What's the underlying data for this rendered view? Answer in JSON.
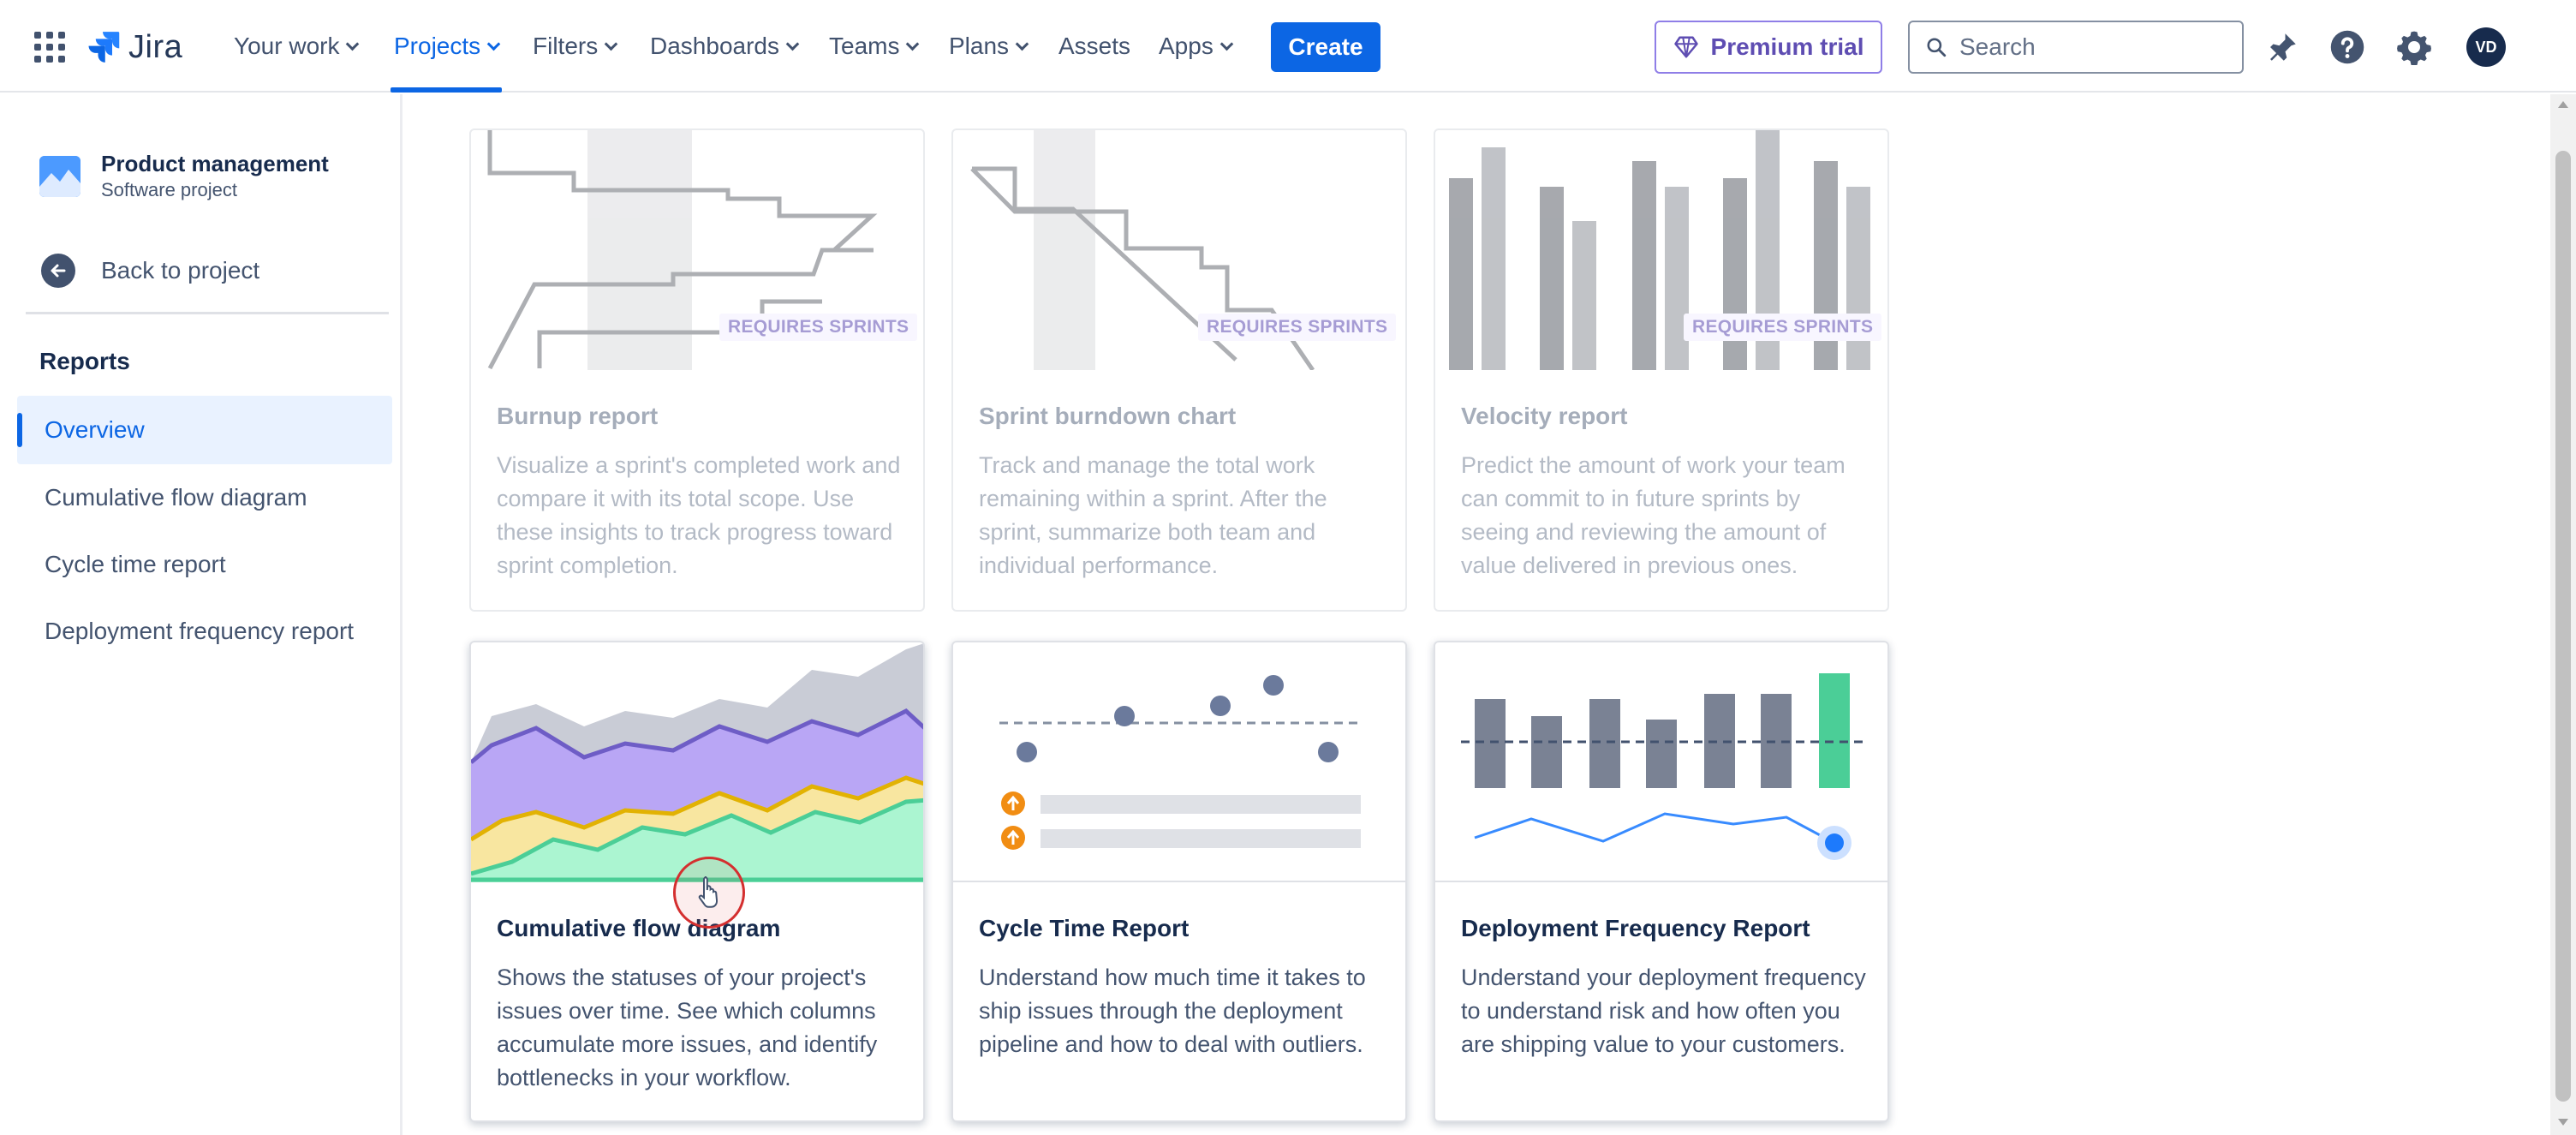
{
  "app": {
    "name": "Jira"
  },
  "nav": {
    "your_work": "Your work",
    "projects": "Projects",
    "filters": "Filters",
    "dashboards": "Dashboards",
    "teams": "Teams",
    "plans": "Plans",
    "assets": "Assets",
    "apps": "Apps",
    "create": "Create",
    "premium_trial": "Premium trial",
    "search_placeholder": "Search",
    "avatar_initials": "VD"
  },
  "sidebar": {
    "project_name": "Product management",
    "project_type": "Software project",
    "back_label": "Back to project",
    "section_title": "Reports",
    "items": [
      {
        "label": "Overview",
        "active": true
      },
      {
        "label": "Cumulative flow diagram",
        "active": false
      },
      {
        "label": "Cycle time report",
        "active": false
      },
      {
        "label": "Deployment frequency report",
        "active": false
      }
    ]
  },
  "cards": [
    {
      "title": "Burnup report",
      "description": "Visualize a sprint's completed work and compare it with its total scope. Use these insights to track progress toward sprint completion.",
      "badge": "REQUIRES SPRINTS",
      "enabled": false,
      "icon": "burnup-illustration"
    },
    {
      "title": "Sprint burndown chart",
      "description": "Track and manage the total work remaining within a sprint. After the sprint, summarize both team and individual performance.",
      "badge": "REQUIRES SPRINTS",
      "enabled": false,
      "icon": "burndown-illustration"
    },
    {
      "title": "Velocity report",
      "description": "Predict the amount of work your team can commit to in future sprints by seeing and reviewing the amount of value delivered in previous ones.",
      "badge": "REQUIRES SPRINTS",
      "enabled": false,
      "icon": "velocity-illustration"
    },
    {
      "title": "Cumulative flow diagram",
      "description": "Shows the statuses of your project's issues over time. See which columns accumulate more issues, and identify bottlenecks in your workflow.",
      "enabled": true,
      "icon": "cumulative-flow-illustration"
    },
    {
      "title": "Cycle Time Report",
      "description": "Understand how much time it takes to ship issues through the deployment pipeline and how to deal with outliers.",
      "enabled": true,
      "icon": "cycle-time-illustration"
    },
    {
      "title": "Deployment Frequency Report",
      "description": "Understand your deployment frequency to understand risk and how often you are shipping value to your customers.",
      "enabled": true,
      "icon": "deployment-frequency-illustration"
    }
  ],
  "colors": {
    "accent": "#0c66e4",
    "premium": "#5e4db2",
    "cfd_gray": "#c9ccd6",
    "cfd_purple": "#b9a6f5",
    "cfd_yellow": "#f8e6a0",
    "cfd_green": "#abf5d1",
    "bar_gray": "#7a8294",
    "bar_green": "#4bce97"
  }
}
